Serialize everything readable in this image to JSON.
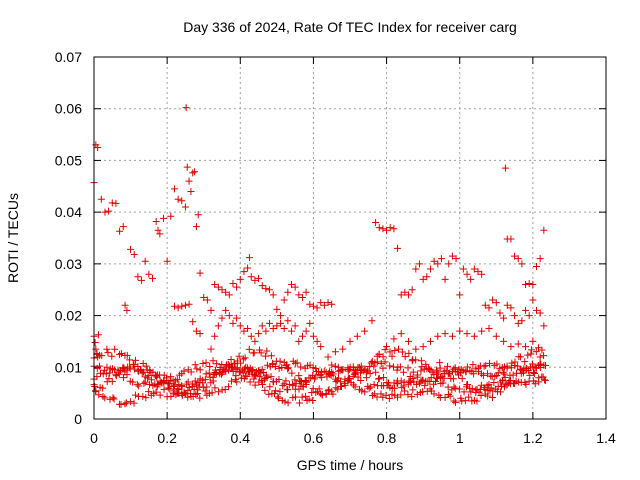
{
  "chart_data": {
    "type": "scatter",
    "title": "Day 336 of 2024, Rate Of TEC Index for receiver carg",
    "xlabel": "GPS time / hours",
    "ylabel": "ROTI / TECUs",
    "xlim": [
      0,
      1.4
    ],
    "ylim": [
      0,
      0.07
    ],
    "xticks": [
      0,
      0.2,
      0.4,
      0.6,
      0.8,
      1,
      1.2,
      1.4
    ],
    "xtick_labels": [
      "0",
      "0.2",
      "0.4",
      "0.6",
      "0.8",
      "1",
      "1.2",
      "1.4"
    ],
    "yticks": [
      0,
      0.01,
      0.02,
      0.03,
      0.04,
      0.05,
      0.06,
      0.07
    ],
    "ytick_labels": [
      "0",
      "0.01",
      "0.02",
      "0.03",
      "0.04",
      "0.05",
      "0.06",
      "0.07"
    ],
    "grid": true,
    "marker": "+",
    "color": "#e00000",
    "series": [
      {
        "name": "ROTI",
        "points": [
          [
            0.0,
            0.0457
          ],
          [
            0.005,
            0.053
          ],
          [
            0.01,
            0.0525
          ],
          [
            0.02,
            0.0425
          ],
          [
            0.03,
            0.04
          ],
          [
            0.04,
            0.0402
          ],
          [
            0.05,
            0.0418
          ],
          [
            0.06,
            0.0417
          ],
          [
            0.07,
            0.0363
          ],
          [
            0.08,
            0.0372
          ],
          [
            0.085,
            0.022
          ],
          [
            0.09,
            0.021
          ],
          [
            0.1,
            0.0328
          ],
          [
            0.11,
            0.0318
          ],
          [
            0.12,
            0.0275
          ],
          [
            0.13,
            0.0268
          ],
          [
            0.14,
            0.0305
          ],
          [
            0.15,
            0.028
          ],
          [
            0.16,
            0.0272
          ],
          [
            0.17,
            0.0382
          ],
          [
            0.175,
            0.0365
          ],
          [
            0.18,
            0.0358
          ],
          [
            0.19,
            0.0388
          ],
          [
            0.2,
            0.0305
          ],
          [
            0.21,
            0.0392
          ],
          [
            0.22,
            0.0445
          ],
          [
            0.23,
            0.0425
          ],
          [
            0.24,
            0.0422
          ],
          [
            0.25,
            0.041
          ],
          [
            0.252,
            0.0602
          ],
          [
            0.255,
            0.0487
          ],
          [
            0.26,
            0.046
          ],
          [
            0.265,
            0.044
          ],
          [
            0.27,
            0.0476
          ],
          [
            0.275,
            0.0478
          ],
          [
            0.28,
            0.0372
          ],
          [
            0.285,
            0.0395
          ],
          [
            0.29,
            0.0282
          ],
          [
            0.0,
            0.016
          ],
          [
            0.003,
            0.0148
          ],
          [
            0.005,
            0.0135
          ],
          [
            0.008,
            0.0125
          ],
          [
            0.01,
            0.012
          ],
          [
            0.012,
            0.0163
          ],
          [
            0.22,
            0.0218
          ],
          [
            0.23,
            0.0215
          ],
          [
            0.24,
            0.0218
          ],
          [
            0.25,
            0.022
          ],
          [
            0.26,
            0.0222
          ],
          [
            0.27,
            0.0188
          ],
          [
            0.28,
            0.017
          ],
          [
            0.29,
            0.0165
          ],
          [
            0.3,
            0.0235
          ],
          [
            0.31,
            0.023
          ],
          [
            0.32,
            0.021
          ],
          [
            0.33,
            0.026
          ],
          [
            0.34,
            0.0255
          ],
          [
            0.35,
            0.025
          ],
          [
            0.36,
            0.0245
          ],
          [
            0.37,
            0.024
          ],
          [
            0.38,
            0.0262
          ],
          [
            0.39,
            0.0255
          ],
          [
            0.4,
            0.027
          ],
          [
            0.41,
            0.0285
          ],
          [
            0.42,
            0.0292
          ],
          [
            0.425,
            0.0312
          ],
          [
            0.43,
            0.0275
          ],
          [
            0.44,
            0.0268
          ],
          [
            0.45,
            0.0272
          ],
          [
            0.46,
            0.0258
          ],
          [
            0.47,
            0.0252
          ],
          [
            0.48,
            0.025
          ],
          [
            0.49,
            0.024
          ],
          [
            0.5,
            0.0212
          ],
          [
            0.51,
            0.02
          ],
          [
            0.52,
            0.023
          ],
          [
            0.53,
            0.0245
          ],
          [
            0.54,
            0.026
          ],
          [
            0.55,
            0.0255
          ],
          [
            0.56,
            0.024
          ],
          [
            0.57,
            0.0235
          ],
          [
            0.58,
            0.0245
          ],
          [
            0.59,
            0.0222
          ],
          [
            0.6,
            0.0218
          ],
          [
            0.61,
            0.0215
          ],
          [
            0.62,
            0.0225
          ],
          [
            0.63,
            0.022
          ],
          [
            0.64,
            0.0225
          ],
          [
            0.65,
            0.0222
          ],
          [
            0.32,
            0.0135
          ],
          [
            0.33,
            0.016
          ],
          [
            0.34,
            0.018
          ],
          [
            0.35,
            0.0195
          ],
          [
            0.36,
            0.021
          ],
          [
            0.37,
            0.02
          ],
          [
            0.38,
            0.0185
          ],
          [
            0.39,
            0.0195
          ],
          [
            0.4,
            0.018
          ],
          [
            0.41,
            0.017
          ],
          [
            0.42,
            0.0175
          ],
          [
            0.43,
            0.016
          ],
          [
            0.44,
            0.015
          ],
          [
            0.45,
            0.0165
          ],
          [
            0.46,
            0.018
          ],
          [
            0.47,
            0.017
          ],
          [
            0.48,
            0.0185
          ],
          [
            0.49,
            0.0175
          ],
          [
            0.5,
            0.018
          ],
          [
            0.51,
            0.0185
          ],
          [
            0.52,
            0.0175
          ],
          [
            0.53,
            0.019
          ],
          [
            0.54,
            0.017
          ],
          [
            0.55,
            0.018
          ],
          [
            0.56,
            0.015
          ],
          [
            0.57,
            0.016
          ],
          [
            0.58,
            0.017
          ],
          [
            0.59,
            0.0185
          ],
          [
            0.6,
            0.016
          ],
          [
            0.61,
            0.015
          ],
          [
            0.62,
            0.014
          ],
          [
            0.64,
            0.012
          ],
          [
            0.66,
            0.013
          ],
          [
            0.68,
            0.0135
          ],
          [
            0.7,
            0.015
          ],
          [
            0.72,
            0.016
          ],
          [
            0.74,
            0.017
          ],
          [
            0.76,
            0.019
          ],
          [
            0.77,
            0.038
          ],
          [
            0.78,
            0.037
          ],
          [
            0.79,
            0.0368
          ],
          [
            0.8,
            0.0365
          ],
          [
            0.81,
            0.037
          ],
          [
            0.82,
            0.0368
          ],
          [
            0.83,
            0.033
          ],
          [
            0.84,
            0.024
          ],
          [
            0.85,
            0.0245
          ],
          [
            0.86,
            0.024
          ],
          [
            0.87,
            0.025
          ],
          [
            0.88,
            0.029
          ],
          [
            0.89,
            0.03
          ],
          [
            0.9,
            0.027
          ],
          [
            0.91,
            0.0275
          ],
          [
            0.92,
            0.029
          ],
          [
            0.93,
            0.0305
          ],
          [
            0.94,
            0.03
          ],
          [
            0.95,
            0.031
          ],
          [
            0.96,
            0.027
          ],
          [
            0.97,
            0.03
          ],
          [
            0.98,
            0.0315
          ],
          [
            0.99,
            0.031
          ],
          [
            1.0,
            0.024
          ],
          [
            1.01,
            0.029
          ],
          [
            1.02,
            0.028
          ],
          [
            1.03,
            0.027
          ],
          [
            1.04,
            0.029
          ],
          [
            1.05,
            0.0285
          ],
          [
            1.06,
            0.028
          ],
          [
            1.07,
            0.022
          ],
          [
            1.08,
            0.0215
          ],
          [
            1.09,
            0.023
          ],
          [
            1.1,
            0.0225
          ],
          [
            1.11,
            0.0205
          ],
          [
            1.12,
            0.0195
          ],
          [
            1.125,
            0.0485
          ],
          [
            1.13,
            0.0348
          ],
          [
            1.14,
            0.0348
          ],
          [
            1.15,
            0.0315
          ],
          [
            1.16,
            0.031
          ],
          [
            1.17,
            0.03
          ],
          [
            1.18,
            0.026
          ],
          [
            1.19,
            0.0262
          ],
          [
            1.2,
            0.026
          ],
          [
            1.21,
            0.0295
          ],
          [
            1.22,
            0.031
          ],
          [
            1.23,
            0.0365
          ],
          [
            1.13,
            0.022
          ],
          [
            1.14,
            0.0215
          ],
          [
            1.15,
            0.02
          ],
          [
            1.16,
            0.0185
          ],
          [
            1.17,
            0.019
          ],
          [
            1.18,
            0.021
          ],
          [
            1.19,
            0.02
          ],
          [
            1.2,
            0.023
          ],
          [
            1.21,
            0.021
          ],
          [
            1.22,
            0.0205
          ],
          [
            1.23,
            0.018
          ],
          [
            0.78,
            0.0125
          ],
          [
            0.8,
            0.014
          ],
          [
            0.82,
            0.0155
          ],
          [
            0.84,
            0.0165
          ],
          [
            0.86,
            0.015
          ],
          [
            0.88,
            0.0135
          ],
          [
            0.9,
            0.014
          ],
          [
            0.92,
            0.015
          ],
          [
            0.94,
            0.016
          ],
          [
            0.96,
            0.0165
          ],
          [
            0.98,
            0.016
          ],
          [
            1.0,
            0.017
          ],
          [
            1.02,
            0.0165
          ],
          [
            1.04,
            0.016
          ],
          [
            1.06,
            0.017
          ],
          [
            1.08,
            0.0175
          ],
          [
            1.1,
            0.016
          ],
          [
            1.12,
            0.015
          ],
          [
            1.14,
            0.014
          ],
          [
            1.16,
            0.0145
          ],
          [
            1.18,
            0.014
          ],
          [
            1.2,
            0.015
          ],
          [
            1.22,
            0.012
          ]
        ]
      }
    ],
    "bands": {
      "x_start": 0.0,
      "x_end": 1.235,
      "x_step": 0.00833,
      "x_jitter": 0.004,
      "seed": 33624,
      "tracks": [
        {
          "base": 0.0082,
          "amp": 0.0014,
          "period": 0.31,
          "phase": 0.0,
          "noise": 0.0006
        },
        {
          "base": 0.0075,
          "amp": 0.003,
          "period": 0.56,
          "phase": 1.9,
          "noise": 0.0008
        },
        {
          "base": 0.007,
          "amp": 0.0035,
          "period": 0.47,
          "phase": 3.6,
          "noise": 0.0009
        },
        {
          "base": 0.009,
          "amp": 0.0038,
          "period": 0.39,
          "phase": 0.8,
          "noise": 0.001
        },
        {
          "base": 0.008,
          "amp": 0.0022,
          "period": 0.27,
          "phase": 5.0,
          "noise": 0.0008
        }
      ]
    }
  }
}
